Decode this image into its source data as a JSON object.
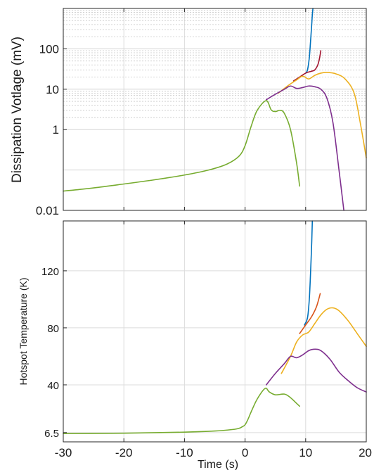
{
  "chart_data": [
    {
      "type": "line",
      "panel": "top",
      "ylabel": "Dissipation Votlage (mV)",
      "yscale": "log",
      "xlim": [
        -30,
        20
      ],
      "ylim": [
        0.01,
        1000
      ],
      "yticks": [
        0.01,
        1,
        10,
        100
      ],
      "ytick_labels": [
        "0.01",
        "1",
        "10",
        "100"
      ],
      "xticks": [
        -30,
        -20,
        -10,
        0,
        10,
        20
      ],
      "grid": true,
      "series": [
        {
          "color": "#0072BD",
          "x": [
            10,
            10.3,
            10.6,
            10.8,
            11,
            11.1,
            11.2
          ],
          "y": [
            25,
            30,
            60,
            150,
            400,
            700,
            1000
          ]
        },
        {
          "color": "#A2142F",
          "x": [
            8,
            9,
            10,
            11,
            11.5,
            12,
            12.3,
            12.5
          ],
          "y": [
            16,
            20,
            25,
            28,
            30,
            40,
            60,
            90
          ]
        },
        {
          "color": "#EDB120",
          "x": [
            5.5,
            7,
            8.5,
            9.5,
            10.5,
            11.5,
            12.5,
            13.5,
            15,
            16.5,
            18,
            19,
            20
          ],
          "y": [
            8,
            12,
            17,
            21,
            18,
            22,
            25,
            26,
            24,
            18,
            8,
            1.5,
            0.2
          ]
        },
        {
          "color": "#7E2F8E",
          "x": [
            3.5,
            5,
            6.5,
            7.5,
            8.5,
            9.5,
            10.5,
            11.5,
            12.5,
            13.5,
            14.5,
            15.5,
            16.3
          ],
          "y": [
            5.5,
            7.5,
            10,
            12,
            10.5,
            11,
            12,
            11.5,
            10,
            6,
            1.5,
            0.1,
            0.01
          ]
        },
        {
          "color": "#77AC30",
          "x": [
            -30,
            -25,
            -20,
            -15,
            -10,
            -6,
            -3,
            -1,
            0,
            1,
            2,
            3.5,
            4.3,
            5,
            5.8,
            6.5,
            7.5,
            8.5,
            9
          ],
          "y": [
            0.03,
            0.036,
            0.045,
            0.057,
            0.075,
            0.1,
            0.14,
            0.22,
            0.4,
            1.2,
            3,
            5.2,
            3.1,
            2.8,
            3,
            2.5,
            1,
            0.15,
            0.04
          ]
        }
      ]
    },
    {
      "type": "line",
      "panel": "bottom",
      "ylabel": "Hotspot Temperature (K)",
      "xlabel": "Time (s)",
      "xlim": [
        -30,
        20
      ],
      "ylim": [
        0,
        155
      ],
      "yticks": [
        6.5,
        40,
        80,
        120
      ],
      "ytick_labels": [
        "6.5",
        "40",
        "80",
        "120"
      ],
      "xticks": [
        -30,
        -20,
        -10,
        0,
        10,
        20
      ],
      "xtick_labels": [
        "-30",
        "-20",
        "-10",
        "0",
        "10",
        "20"
      ],
      "grid": true,
      "series": [
        {
          "color": "#0072BD",
          "x": [
            9.8,
            10.3,
            10.6,
            10.8,
            11,
            11.1
          ],
          "y": [
            82,
            87,
            100,
            118,
            140,
            155
          ]
        },
        {
          "color": "#D95319",
          "x": [
            9,
            10,
            11,
            11.8,
            12.4
          ],
          "y": [
            76,
            82,
            88,
            95,
            104
          ]
        },
        {
          "color": "#EDB120",
          "x": [
            6,
            7.5,
            8.5,
            9.5,
            10.5,
            11.5,
            12.5,
            13.5,
            14.5,
            15.5,
            17,
            18.5,
            20
          ],
          "y": [
            48,
            60,
            70,
            75,
            77,
            83,
            89,
            93,
            94,
            92,
            85,
            76,
            67
          ]
        },
        {
          "color": "#7E2F8E",
          "x": [
            3.5,
            5,
            6.5,
            7.5,
            8.5,
            9.5,
            10.5,
            11.5,
            12.5,
            14,
            15.5,
            17,
            18.5,
            20
          ],
          "y": [
            40,
            48,
            55,
            60,
            59,
            61,
            64,
            65,
            64,
            58,
            49,
            43,
            38,
            35
          ]
        },
        {
          "color": "#77AC30",
          "x": [
            -30,
            -20,
            -10,
            -5,
            -2,
            -1,
            -0.5,
            0,
            0.5,
            1,
            2,
            3.3,
            4,
            5,
            6.5,
            7.5,
            8.5,
            9
          ],
          "y": [
            5.8,
            6.1,
            6.8,
            7.6,
            8.7,
            9.5,
            10.5,
            12,
            16,
            21,
            30,
            37.5,
            35,
            33,
            33.5,
            31,
            27,
            25
          ]
        }
      ]
    }
  ]
}
